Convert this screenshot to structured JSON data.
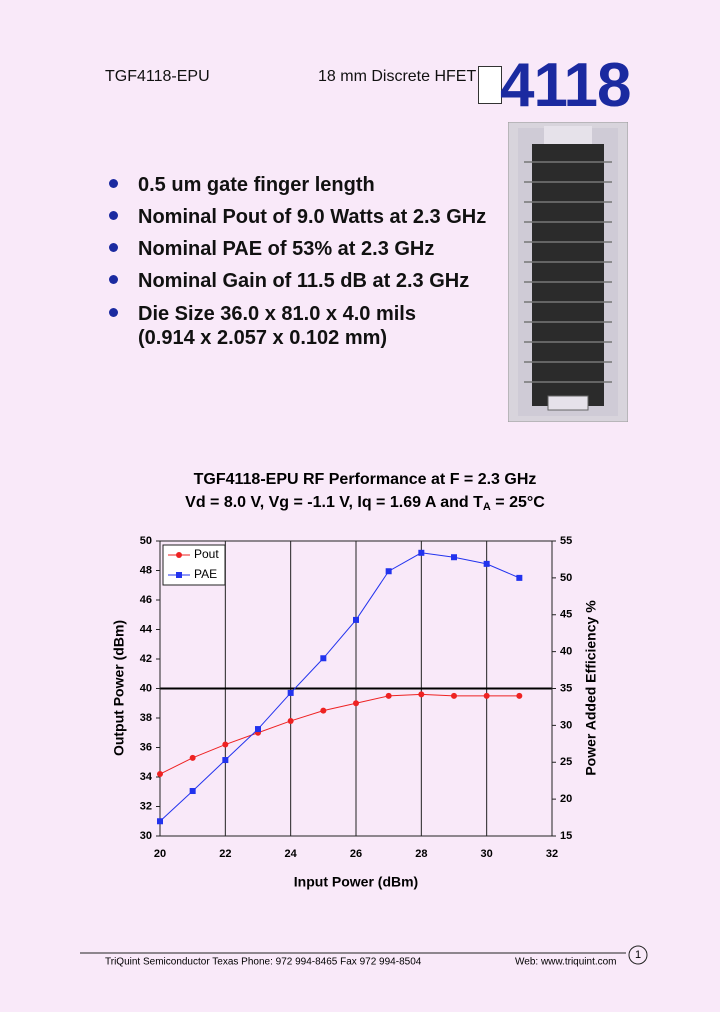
{
  "header": {
    "part": "TGF4118-EPU",
    "description": "18 mm Discrete HFET",
    "number": "4118"
  },
  "bullets": [
    "0.5 um gate finger length",
    "Nominal Pout of 9.0 Watts at 2.3 GHz",
    "Nominal PAE of 53% at 2.3 GHz",
    "Nominal Gain of 11.5 dB at 2.3 GHz",
    "Die Size 36.0 x 81.0 x 4.0 mils",
    "(0.914 x 2.057 x 0.102 mm)"
  ],
  "chart_data": {
    "type": "line",
    "title": "TGF4118-EPU RF Performance at F = 2.3 GHz",
    "subtitle": [
      "Vd = 8.0 V,  Vg = -1.1 V, Iq = 1.69 A and T",
      "A",
      " = 25°C"
    ],
    "xlabel": "Input Power (dBm)",
    "ylabel": "Output Power (dBm)",
    "y2label": "Power Added Efficiency %",
    "x": [
      20,
      21,
      22,
      23,
      24,
      25,
      26,
      27,
      28,
      29,
      30,
      31
    ],
    "series": [
      {
        "name": "Pout",
        "color": "#ee2222",
        "marker": "circle",
        "values": [
          34.2,
          35.3,
          36.2,
          37.0,
          37.8,
          38.5,
          39.0,
          39.5,
          39.6,
          39.5,
          39.5,
          39.5
        ]
      },
      {
        "name": "PAE",
        "color": "#2233ee",
        "marker": "square",
        "axis": "y2",
        "values": [
          17.0,
          21.1,
          25.3,
          29.5,
          34.4,
          39.1,
          44.3,
          50.9,
          53.4,
          52.8,
          51.9,
          50.0
        ]
      }
    ],
    "xlim": [
      20,
      32
    ],
    "xticks": [
      20,
      22,
      24,
      26,
      28,
      30,
      32
    ],
    "ylim": [
      30,
      50
    ],
    "yticks": [
      30,
      32,
      34,
      36,
      38,
      40,
      42,
      44,
      46,
      48,
      50
    ],
    "y2lim": [
      15,
      55
    ],
    "y2ticks": [
      15,
      20,
      25,
      30,
      35,
      40,
      45,
      50,
      55
    ],
    "hline": 40,
    "grid": "x",
    "legend": "upper left"
  },
  "footer": {
    "contact": "TriQuint Semiconductor Texas Phone: 972 994-8465    Fax 972 994-8504",
    "web": "Web:  www.triquint.com",
    "page": "1"
  }
}
